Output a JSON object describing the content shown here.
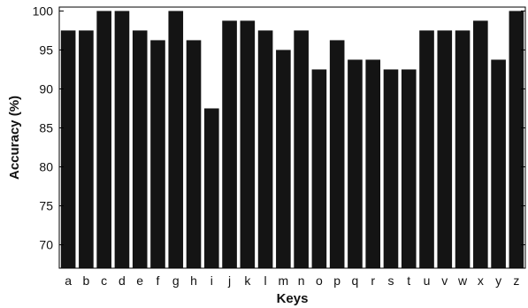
{
  "chart_data": {
    "type": "bar",
    "title": "",
    "xlabel": "Keys",
    "ylabel": "Accuracy (%)",
    "categories": [
      "a",
      "b",
      "c",
      "d",
      "e",
      "f",
      "g",
      "h",
      "i",
      "j",
      "k",
      "l",
      "m",
      "n",
      "o",
      "p",
      "q",
      "r",
      "s",
      "t",
      "u",
      "v",
      "w",
      "x",
      "y",
      "z"
    ],
    "values": [
      97.5,
      97.5,
      100,
      100,
      97.5,
      96.25,
      100,
      96.25,
      87.5,
      98.75,
      98.75,
      97.5,
      95,
      97.5,
      92.5,
      96.25,
      93.75,
      93.75,
      92.5,
      92.5,
      97.5,
      97.5,
      97.5,
      98.75,
      93.75,
      100
    ],
    "ylim": [
      67,
      100.5
    ],
    "yticks": [
      70,
      75,
      80,
      85,
      90,
      95,
      100
    ],
    "bar_color": "#141414",
    "grid": false,
    "legend": "none"
  }
}
